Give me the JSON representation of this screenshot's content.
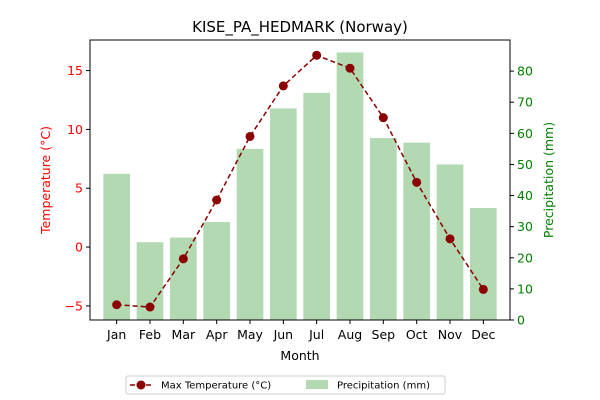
{
  "chart_data": {
    "type": "bar",
    "title": "KISE_PA_HEDMARK (Norway)",
    "xlabel": "Month",
    "categories": [
      "Jan",
      "Feb",
      "Mar",
      "Apr",
      "May",
      "Jun",
      "Jul",
      "Aug",
      "Sep",
      "Oct",
      "Nov",
      "Dec"
    ],
    "y_left": {
      "label": "Temperature (°C)",
      "color": "#ff0000",
      "lim": [
        -6.2,
        17.6
      ],
      "ticks": [
        -5,
        0,
        5,
        10,
        15
      ]
    },
    "y_right": {
      "label": "Precipitation (mm)",
      "color": "#008000",
      "lim": [
        0,
        90
      ],
      "ticks": [
        0,
        10,
        20,
        30,
        40,
        50,
        60,
        70,
        80
      ]
    },
    "series": [
      {
        "name": "Max Temperature (°C)",
        "type": "line",
        "axis": "left",
        "color": "#8b0000",
        "linestyle": "dashed",
        "marker": "circle",
        "values": [
          -4.9,
          -5.1,
          -1.0,
          4.0,
          9.4,
          13.7,
          16.3,
          15.2,
          11.0,
          5.5,
          0.7,
          -3.6
        ]
      },
      {
        "name": "Precipitation (mm)",
        "type": "bar",
        "axis": "right",
        "color": "#b2d9b2",
        "values": [
          47,
          25,
          26.5,
          31.5,
          55,
          68,
          73,
          86,
          58.5,
          57,
          50,
          36
        ]
      }
    ],
    "grid": false,
    "legend": {
      "position": "bottom-center",
      "columns": 2
    }
  }
}
